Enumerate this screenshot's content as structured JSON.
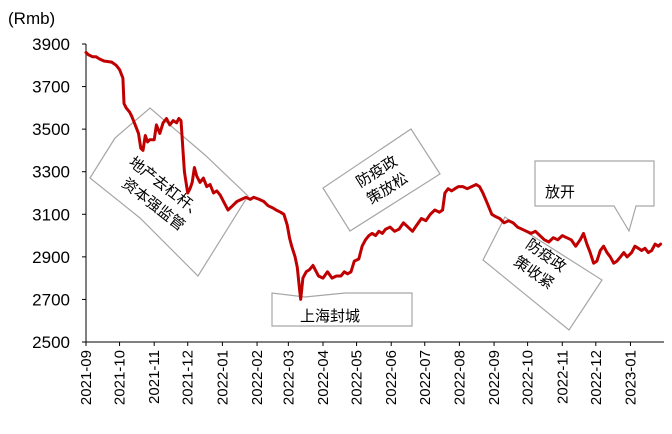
{
  "chart_data": {
    "type": "line",
    "unit_label": "(Rmb)",
    "ylim": [
      2500,
      3900
    ],
    "y_ticks": [
      "3900",
      "3700",
      "3500",
      "3300",
      "3100",
      "2900",
      "2700",
      "2500"
    ],
    "x_ticks": [
      "2021-09",
      "2021-10",
      "2021-11",
      "2021-12",
      "2022-01",
      "2022-02",
      "2022-03",
      "2022-04",
      "2022-05",
      "2022-06",
      "2022-07",
      "2022-08",
      "2022-09",
      "2022-10",
      "2022-11",
      "2022-12",
      "2023-01"
    ],
    "series": [
      {
        "color": "#c00000",
        "points": [
          [
            "2021-09-01",
            3860
          ],
          [
            "2021-09-03",
            3850
          ],
          [
            "2021-09-07",
            3840
          ],
          [
            "2021-09-10",
            3840
          ],
          [
            "2021-09-13",
            3830
          ],
          [
            "2021-09-17",
            3820
          ],
          [
            "2021-09-24",
            3815
          ],
          [
            "2021-09-28",
            3800
          ],
          [
            "2021-10-01",
            3780
          ],
          [
            "2021-10-04",
            3740
          ],
          [
            "2021-10-05",
            3620
          ],
          [
            "2021-10-07",
            3600
          ],
          [
            "2021-10-10",
            3580
          ],
          [
            "2021-10-12",
            3560
          ],
          [
            "2021-10-15",
            3520
          ],
          [
            "2021-10-18",
            3480
          ],
          [
            "2021-10-20",
            3410
          ],
          [
            "2021-10-22",
            3400
          ],
          [
            "2021-10-24",
            3470
          ],
          [
            "2021-10-26",
            3440
          ],
          [
            "2021-10-28",
            3450
          ],
          [
            "2021-11-01",
            3450
          ],
          [
            "2021-11-03",
            3520
          ],
          [
            "2021-11-06",
            3480
          ],
          [
            "2021-11-09",
            3530
          ],
          [
            "2021-11-12",
            3550
          ],
          [
            "2021-11-15",
            3520
          ],
          [
            "2021-11-18",
            3540
          ],
          [
            "2021-11-21",
            3530
          ],
          [
            "2021-11-23",
            3550
          ],
          [
            "2021-11-25",
            3540
          ],
          [
            "2021-11-28",
            3300
          ],
          [
            "2021-12-01",
            3200
          ],
          [
            "2021-12-03",
            3220
          ],
          [
            "2021-12-05",
            3250
          ],
          [
            "2021-12-07",
            3320
          ],
          [
            "2021-12-09",
            3280
          ],
          [
            "2021-12-12",
            3250
          ],
          [
            "2021-12-15",
            3270
          ],
          [
            "2021-12-18",
            3230
          ],
          [
            "2021-12-21",
            3240
          ],
          [
            "2021-12-24",
            3200
          ],
          [
            "2021-12-27",
            3210
          ],
          [
            "2021-12-30",
            3190
          ],
          [
            "2022-01-03",
            3150
          ],
          [
            "2022-01-06",
            3120
          ],
          [
            "2022-01-10",
            3140
          ],
          [
            "2022-01-14",
            3160
          ],
          [
            "2022-01-18",
            3170
          ],
          [
            "2022-01-22",
            3180
          ],
          [
            "2022-01-26",
            3170
          ],
          [
            "2022-01-29",
            3180
          ],
          [
            "2022-02-03",
            3170
          ],
          [
            "2022-02-07",
            3160
          ],
          [
            "2022-02-11",
            3140
          ],
          [
            "2022-02-15",
            3130
          ],
          [
            "2022-02-18",
            3120
          ],
          [
            "2022-02-22",
            3110
          ],
          [
            "2022-02-25",
            3100
          ],
          [
            "2022-02-28",
            3050
          ],
          [
            "2022-03-02",
            2990
          ],
          [
            "2022-03-04",
            2950
          ],
          [
            "2022-03-07",
            2900
          ],
          [
            "2022-03-09",
            2850
          ],
          [
            "2022-03-11",
            2750
          ],
          [
            "2022-03-12",
            2700
          ],
          [
            "2022-03-14",
            2800
          ],
          [
            "2022-03-17",
            2830
          ],
          [
            "2022-03-20",
            2840
          ],
          [
            "2022-03-23",
            2860
          ],
          [
            "2022-03-26",
            2830
          ],
          [
            "2022-03-28",
            2810
          ],
          [
            "2022-04-01",
            2800
          ],
          [
            "2022-04-05",
            2830
          ],
          [
            "2022-04-09",
            2800
          ],
          [
            "2022-04-13",
            2810
          ],
          [
            "2022-04-17",
            2810
          ],
          [
            "2022-04-20",
            2830
          ],
          [
            "2022-04-23",
            2820
          ],
          [
            "2022-04-26",
            2830
          ],
          [
            "2022-04-29",
            2880
          ],
          [
            "2022-05-03",
            2890
          ],
          [
            "2022-05-06",
            2950
          ],
          [
            "2022-05-09",
            2980
          ],
          [
            "2022-05-12",
            3000
          ],
          [
            "2022-05-15",
            3010
          ],
          [
            "2022-05-18",
            3000
          ],
          [
            "2022-05-21",
            3020
          ],
          [
            "2022-05-24",
            3010
          ],
          [
            "2022-05-27",
            3030
          ],
          [
            "2022-05-31",
            3040
          ],
          [
            "2022-06-04",
            3020
          ],
          [
            "2022-06-08",
            3030
          ],
          [
            "2022-06-12",
            3060
          ],
          [
            "2022-06-16",
            3040
          ],
          [
            "2022-06-20",
            3020
          ],
          [
            "2022-06-24",
            3050
          ],
          [
            "2022-06-28",
            3080
          ],
          [
            "2022-07-02",
            3070
          ],
          [
            "2022-07-06",
            3100
          ],
          [
            "2022-07-10",
            3120
          ],
          [
            "2022-07-14",
            3110
          ],
          [
            "2022-07-17",
            3120
          ],
          [
            "2022-07-19",
            3200
          ],
          [
            "2022-07-22",
            3220
          ],
          [
            "2022-07-25",
            3210
          ],
          [
            "2022-07-28",
            3220
          ],
          [
            "2022-07-31",
            3230
          ],
          [
            "2022-08-04",
            3230
          ],
          [
            "2022-08-08",
            3220
          ],
          [
            "2022-08-12",
            3230
          ],
          [
            "2022-08-16",
            3240
          ],
          [
            "2022-08-19",
            3230
          ],
          [
            "2022-08-22",
            3200
          ],
          [
            "2022-08-26",
            3150
          ],
          [
            "2022-08-30",
            3100
          ],
          [
            "2022-09-02",
            3090
          ],
          [
            "2022-09-06",
            3080
          ],
          [
            "2022-09-10",
            3060
          ],
          [
            "2022-09-14",
            3070
          ],
          [
            "2022-09-18",
            3060
          ],
          [
            "2022-09-22",
            3040
          ],
          [
            "2022-09-26",
            3030
          ],
          [
            "2022-09-30",
            3020
          ],
          [
            "2022-10-04",
            3010
          ],
          [
            "2022-10-08",
            3020
          ],
          [
            "2022-10-12",
            3000
          ],
          [
            "2022-10-16",
            2980
          ],
          [
            "2022-10-20",
            2970
          ],
          [
            "2022-10-24",
            2990
          ],
          [
            "2022-10-28",
            2980
          ],
          [
            "2022-11-01",
            3000
          ],
          [
            "2022-11-05",
            2990
          ],
          [
            "2022-11-09",
            2980
          ],
          [
            "2022-11-13",
            2950
          ],
          [
            "2022-11-17",
            2980
          ],
          [
            "2022-11-20",
            3010
          ],
          [
            "2022-11-23",
            2960
          ],
          [
            "2022-11-26",
            2920
          ],
          [
            "2022-11-29",
            2870
          ],
          [
            "2022-12-02",
            2880
          ],
          [
            "2022-12-05",
            2930
          ],
          [
            "2022-12-08",
            2950
          ],
          [
            "2022-12-11",
            2920
          ],
          [
            "2022-12-14",
            2900
          ],
          [
            "2022-12-17",
            2870
          ],
          [
            "2022-12-20",
            2880
          ],
          [
            "2022-12-23",
            2900
          ],
          [
            "2022-12-26",
            2920
          ],
          [
            "2022-12-29",
            2900
          ],
          [
            "2023-01-02",
            2920
          ],
          [
            "2023-01-05",
            2950
          ],
          [
            "2023-01-08",
            2940
          ],
          [
            "2023-01-11",
            2930
          ],
          [
            "2023-01-14",
            2940
          ],
          [
            "2023-01-17",
            2920
          ],
          [
            "2023-01-20",
            2930
          ],
          [
            "2023-01-23",
            2960
          ],
          [
            "2023-01-26",
            2950
          ],
          [
            "2023-01-28",
            2960
          ]
        ]
      }
    ],
    "annotations": [
      {
        "text_lines": [
          "地产去杠杆、",
          "资本强监管"
        ]
      },
      {
        "text_lines": [
          "上海封城"
        ]
      },
      {
        "text_lines": [
          "防疫政",
          "策放松"
        ]
      },
      {
        "text_lines": [
          "放开"
        ]
      },
      {
        "text_lines": [
          "防疫政",
          "策收紧"
        ]
      }
    ]
  }
}
